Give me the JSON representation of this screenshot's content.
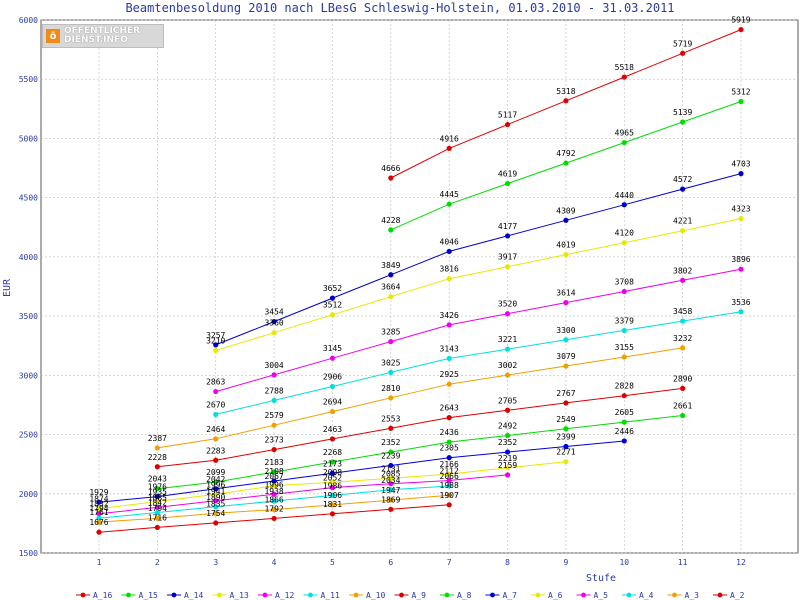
{
  "chart_data": {
    "type": "line",
    "title": "Beamtenbesoldung 2010 nach LBesG Schleswig-Holstein, 01.03.2010 - 31.03.2011",
    "xlabel": "Stufe",
    "ylabel": "EUR",
    "x": [
      1,
      2,
      3,
      4,
      5,
      6,
      7,
      8,
      9,
      10,
      11,
      12
    ],
    "xlim": [
      1,
      12
    ],
    "ylim": [
      1500,
      6000
    ],
    "yticks": [
      1500,
      2000,
      2500,
      3000,
      3500,
      4000,
      4500,
      5000,
      5500,
      6000
    ],
    "grid": true,
    "legend_position": "bottom",
    "series": [
      {
        "name": "A_16",
        "color": "#e00000",
        "points": [
          [
            6,
            4666
          ],
          [
            7,
            4916
          ],
          [
            8,
            5117
          ],
          [
            9,
            5318
          ],
          [
            10,
            5518
          ],
          [
            11,
            5719
          ],
          [
            12,
            5919
          ]
        ]
      },
      {
        "name": "A_15",
        "color": "#00dd00",
        "points": [
          [
            6,
            4228
          ],
          [
            7,
            4445
          ],
          [
            8,
            4619
          ],
          [
            9,
            4792
          ],
          [
            10,
            4965
          ],
          [
            11,
            5139
          ],
          [
            12,
            5312
          ]
        ]
      },
      {
        "name": "A_14",
        "color": "#0000cc",
        "points": [
          [
            3,
            3257
          ],
          [
            4,
            3454
          ],
          [
            5,
            3652
          ],
          [
            6,
            3849
          ],
          [
            7,
            4046
          ],
          [
            8,
            4177
          ],
          [
            9,
            4309
          ],
          [
            10,
            4440
          ],
          [
            11,
            4572
          ],
          [
            12,
            4703
          ]
        ]
      },
      {
        "name": "A_13",
        "color": "#e8e800",
        "points": [
          [
            3,
            3210
          ],
          [
            4,
            3360
          ],
          [
            5,
            3512
          ],
          [
            6,
            3664
          ],
          [
            7,
            3816
          ],
          [
            8,
            3917
          ],
          [
            9,
            4019
          ],
          [
            10,
            4120
          ],
          [
            11,
            4221
          ],
          [
            12,
            4323
          ]
        ]
      },
      {
        "name": "A_12",
        "color": "#ee00ee",
        "points": [
          [
            3,
            2863
          ],
          [
            4,
            3004
          ],
          [
            5,
            3145
          ],
          [
            6,
            3285
          ],
          [
            7,
            3426
          ],
          [
            8,
            3520
          ],
          [
            9,
            3614
          ],
          [
            10,
            3708
          ],
          [
            11,
            3802
          ],
          [
            12,
            3896
          ]
        ]
      },
      {
        "name": "A_11",
        "color": "#00e0e0",
        "points": [
          [
            3,
            2670
          ],
          [
            4,
            2788
          ],
          [
            5,
            2906
          ],
          [
            6,
            3025
          ],
          [
            7,
            3143
          ],
          [
            8,
            3221
          ],
          [
            9,
            3300
          ],
          [
            10,
            3379
          ],
          [
            11,
            3458
          ],
          [
            12,
            3536
          ]
        ]
      },
      {
        "name": "A_10",
        "color": "#f0a000",
        "points": [
          [
            2,
            2387
          ],
          [
            3,
            2464
          ],
          [
            4,
            2579
          ],
          [
            5,
            2694
          ],
          [
            6,
            2810
          ],
          [
            7,
            2925
          ],
          [
            8,
            3002
          ],
          [
            9,
            3079
          ],
          [
            10,
            3155
          ],
          [
            11,
            3232
          ]
        ]
      },
      {
        "name": "A_9",
        "color": "#dd0000",
        "points": [
          [
            2,
            2228
          ],
          [
            3,
            2283
          ],
          [
            4,
            2373
          ],
          [
            5,
            2463
          ],
          [
            6,
            2553
          ],
          [
            7,
            2643
          ],
          [
            8,
            2705
          ],
          [
            9,
            2767
          ],
          [
            10,
            2828
          ],
          [
            11,
            2890
          ]
        ]
      },
      {
        "name": "A_8",
        "color": "#00dd00",
        "points": [
          [
            2,
            2043
          ],
          [
            3,
            2099
          ],
          [
            4,
            2183
          ],
          [
            5,
            2268
          ],
          [
            6,
            2352
          ],
          [
            7,
            2436
          ],
          [
            8,
            2492
          ],
          [
            9,
            2549
          ],
          [
            10,
            2605
          ],
          [
            11,
            2661
          ]
        ]
      },
      {
        "name": "A_7",
        "color": "#0000dd",
        "points": [
          [
            1,
            1929
          ],
          [
            2,
            1976
          ],
          [
            3,
            2042
          ],
          [
            4,
            2108
          ],
          [
            5,
            2173
          ],
          [
            6,
            2239
          ],
          [
            7,
            2305
          ],
          [
            8,
            2352
          ],
          [
            9,
            2399
          ],
          [
            10,
            2446
          ]
        ]
      },
      {
        "name": "A_6",
        "color": "#e8e800",
        "points": [
          [
            1,
            1874
          ],
          [
            2,
            1935
          ],
          [
            3,
            1996
          ],
          [
            4,
            2067
          ],
          [
            5,
            2098
          ],
          [
            6,
            2131
          ],
          [
            7,
            2166
          ],
          [
            8,
            2219
          ],
          [
            9,
            2271
          ]
        ]
      },
      {
        "name": "A_5",
        "color": "#ee00ee",
        "points": [
          [
            1,
            1832
          ],
          [
            2,
            1885
          ],
          [
            3,
            1941
          ],
          [
            4,
            1996
          ],
          [
            5,
            2052
          ],
          [
            6,
            2085
          ],
          [
            7,
            2112
          ],
          [
            8,
            2159
          ]
        ]
      },
      {
        "name": "A_4",
        "color": "#00e0e0",
        "points": [
          [
            1,
            1794
          ],
          [
            2,
            1842
          ],
          [
            3,
            1890
          ],
          [
            4,
            1938
          ],
          [
            5,
            1986
          ],
          [
            6,
            2034
          ],
          [
            7,
            2066
          ]
        ]
      },
      {
        "name": "A_3",
        "color": "#f0a000",
        "points": [
          [
            1,
            1761
          ],
          [
            2,
            1794
          ],
          [
            3,
            1835
          ],
          [
            4,
            1866
          ],
          [
            5,
            1906
          ],
          [
            6,
            1947
          ],
          [
            7,
            1988
          ]
        ]
      },
      {
        "name": "A_2",
        "color": "#e00000",
        "points": [
          [
            1,
            1676
          ],
          [
            2,
            1716
          ],
          [
            3,
            1754
          ],
          [
            4,
            1792
          ],
          [
            5,
            1831
          ],
          [
            6,
            1869
          ],
          [
            7,
            1907
          ]
        ]
      }
    ]
  },
  "logo": {
    "line1": "ÖFFENTLICHER",
    "line2": "DIENST.INFO",
    "mark": "ö"
  }
}
